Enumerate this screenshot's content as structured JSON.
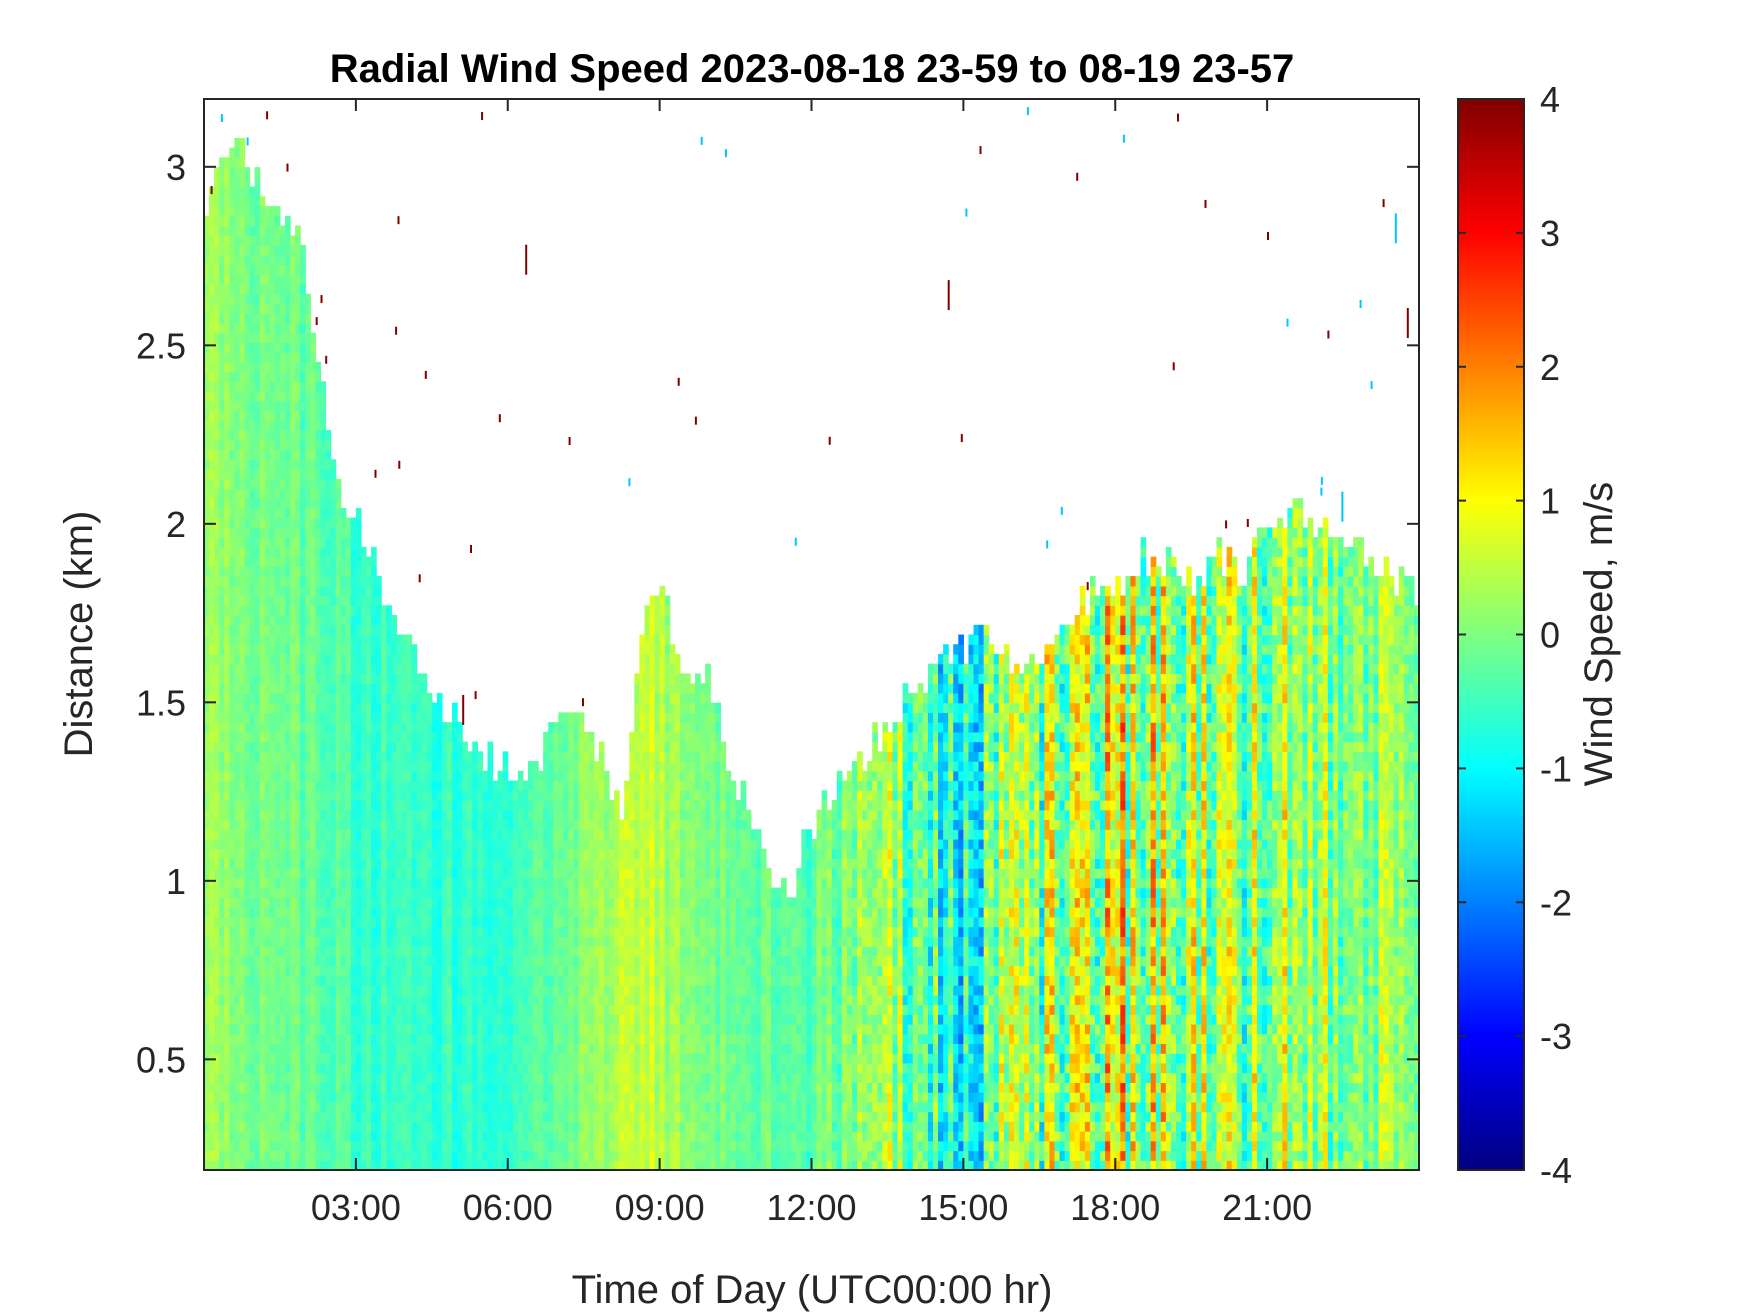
{
  "chart_data": {
    "type": "heatmap",
    "title": "Radial Wind Speed 2023-08-18 23-59 to 08-19 23-57",
    "xlabel": "Time of Day (UTC00:00 hr)",
    "ylabel": "Distance (km)",
    "xlim_hours": [
      0,
      24
    ],
    "ylim_km": [
      0.19,
      3.19
    ],
    "x_ticks": [
      {
        "value": 3,
        "label": "03:00"
      },
      {
        "value": 6,
        "label": "06:00"
      },
      {
        "value": 9,
        "label": "09:00"
      },
      {
        "value": 12,
        "label": "12:00"
      },
      {
        "value": 15,
        "label": "15:00"
      },
      {
        "value": 18,
        "label": "18:00"
      },
      {
        "value": 21,
        "label": "21:00"
      }
    ],
    "y_ticks": [
      {
        "value": 0.5,
        "label": "0.5"
      },
      {
        "value": 1,
        "label": "1"
      },
      {
        "value": 1.5,
        "label": "1.5"
      },
      {
        "value": 2,
        "label": "2"
      },
      {
        "value": 2.5,
        "label": "2.5"
      },
      {
        "value": 3,
        "label": "3"
      }
    ],
    "colorbar": {
      "label": "Wind Speed, m/s",
      "range": [
        -4,
        4
      ],
      "colormap": "jet",
      "ticks": [
        {
          "value": 4,
          "label": "4"
        },
        {
          "value": 3,
          "label": "3"
        },
        {
          "value": 2,
          "label": "2"
        },
        {
          "value": 1,
          "label": "1"
        },
        {
          "value": 0,
          "label": "0"
        },
        {
          "value": -1,
          "label": "-1"
        },
        {
          "value": -2,
          "label": "-2"
        },
        {
          "value": -3,
          "label": "-3"
        },
        {
          "value": -4,
          "label": "-4"
        }
      ]
    },
    "data_top_km": {
      "hours": [
        0.0,
        0.3,
        1.0,
        2.0,
        2.5,
        3.0,
        3.5,
        4.0,
        4.5,
        5.0,
        5.5,
        6.0,
        6.5,
        7.0,
        7.5,
        8.0,
        8.3,
        8.7,
        9.0,
        9.5,
        10.0,
        10.5,
        11.0,
        11.5,
        12.0,
        12.5,
        13.0,
        13.5,
        14.0,
        14.5,
        15.0,
        15.5,
        16.0,
        16.5,
        17.0,
        17.5,
        18.0,
        18.5,
        19.0,
        19.5,
        20.0,
        20.5,
        21.0,
        21.5,
        22.0,
        22.5,
        23.0,
        23.5,
        24.0
      ],
      "top": [
        2.8,
        3.05,
        3.0,
        2.75,
        2.2,
        2.0,
        1.85,
        1.65,
        1.55,
        1.45,
        1.35,
        1.3,
        1.3,
        1.45,
        1.45,
        1.3,
        1.2,
        1.7,
        1.8,
        1.6,
        1.55,
        1.3,
        1.05,
        0.95,
        1.15,
        1.25,
        1.35,
        1.4,
        1.55,
        1.6,
        1.65,
        1.7,
        1.6,
        1.55,
        1.7,
        1.8,
        1.85,
        1.9,
        1.9,
        1.85,
        1.9,
        1.85,
        2.0,
        2.05,
        2.0,
        1.95,
        1.9,
        1.85,
        1.8
      ]
    },
    "mean_speed_profile": {
      "hours": [
        0,
        3,
        6,
        8.5,
        10,
        12,
        13,
        15,
        17,
        18,
        20,
        22,
        24
      ],
      "mean": [
        0.3,
        -0.5,
        -0.7,
        0.6,
        0.0,
        -0.3,
        0.3,
        -0.6,
        0.4,
        0.7,
        0.2,
        0.3,
        0.0
      ],
      "spread": [
        0.4,
        0.3,
        0.3,
        0.4,
        0.4,
        0.4,
        0.9,
        1.3,
        1.6,
        1.7,
        1.4,
        1.1,
        0.7
      ]
    }
  }
}
